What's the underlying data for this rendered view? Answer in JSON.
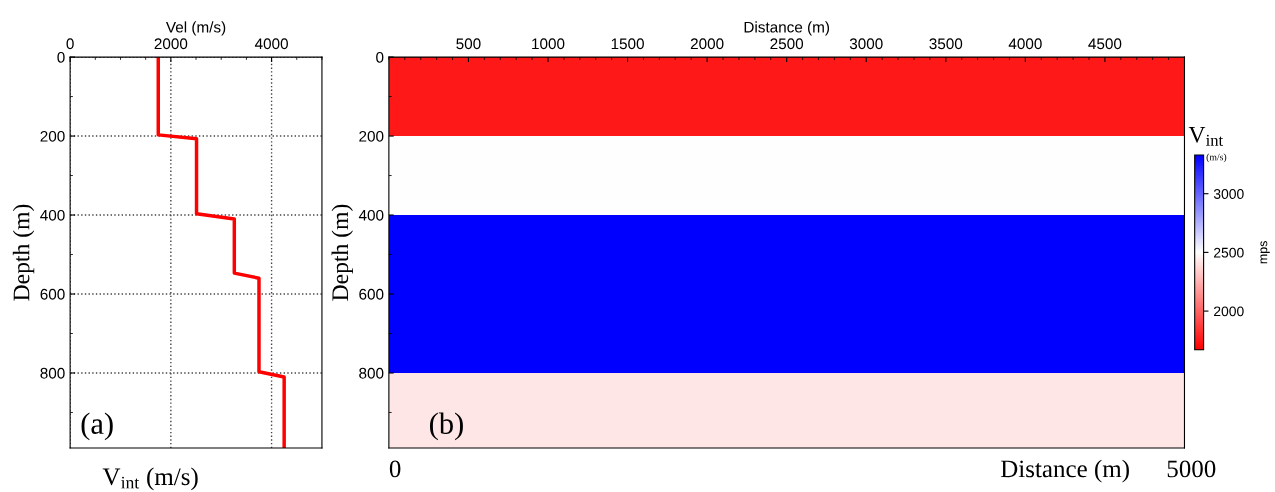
{
  "chart_data": [
    {
      "type": "line",
      "xlabel": "Vel (m/s)",
      "ylabel": "Depth (m)",
      "x": [
        1750,
        1750,
        2510,
        2510,
        3260,
        3260,
        3750,
        3750,
        4250,
        4250
      ],
      "series": [
        {
          "color": "#ff0000",
          "values": [
            0,
            197,
            207,
            397,
            410,
            547,
            560,
            797,
            810,
            990
          ]
        }
      ],
      "xlim": [
        0,
        5000
      ],
      "xticks": [
        0,
        2000,
        4000
      ],
      "ylim": [
        990,
        0
      ],
      "yticks": [
        0,
        200,
        400,
        600,
        800
      ],
      "grid": true,
      "marker": "none",
      "line_style": "solid",
      "annotations": [
        "(a)",
        "V$_{int}$ (m/s)"
      ]
    },
    {
      "type": "heatmap",
      "xlabel": "Distance (m)",
      "ylabel": "Depth (m)",
      "clabel": "mps",
      "cells": [
        [
          1750
        ],
        [
          2500
        ],
        [
          3330
        ],
        [
          3330
        ],
        [
          2420
        ]
      ],
      "clim": [
        1670,
        3330
      ],
      "cticks": [
        2000,
        2500,
        3000
      ],
      "xlim": [
        0,
        5000
      ],
      "xticks": [
        500,
        1000,
        1500,
        2000,
        2500,
        3000,
        3500,
        4000,
        4500
      ],
      "ylim": [
        990,
        0
      ],
      "yticks": [
        0,
        200,
        400,
        600,
        800
      ],
      "annotations": [
        "(b)",
        "0",
        "Distance (m)",
        "5000",
        "V$_{int}$",
        "(m/s)"
      ]
    }
  ]
}
